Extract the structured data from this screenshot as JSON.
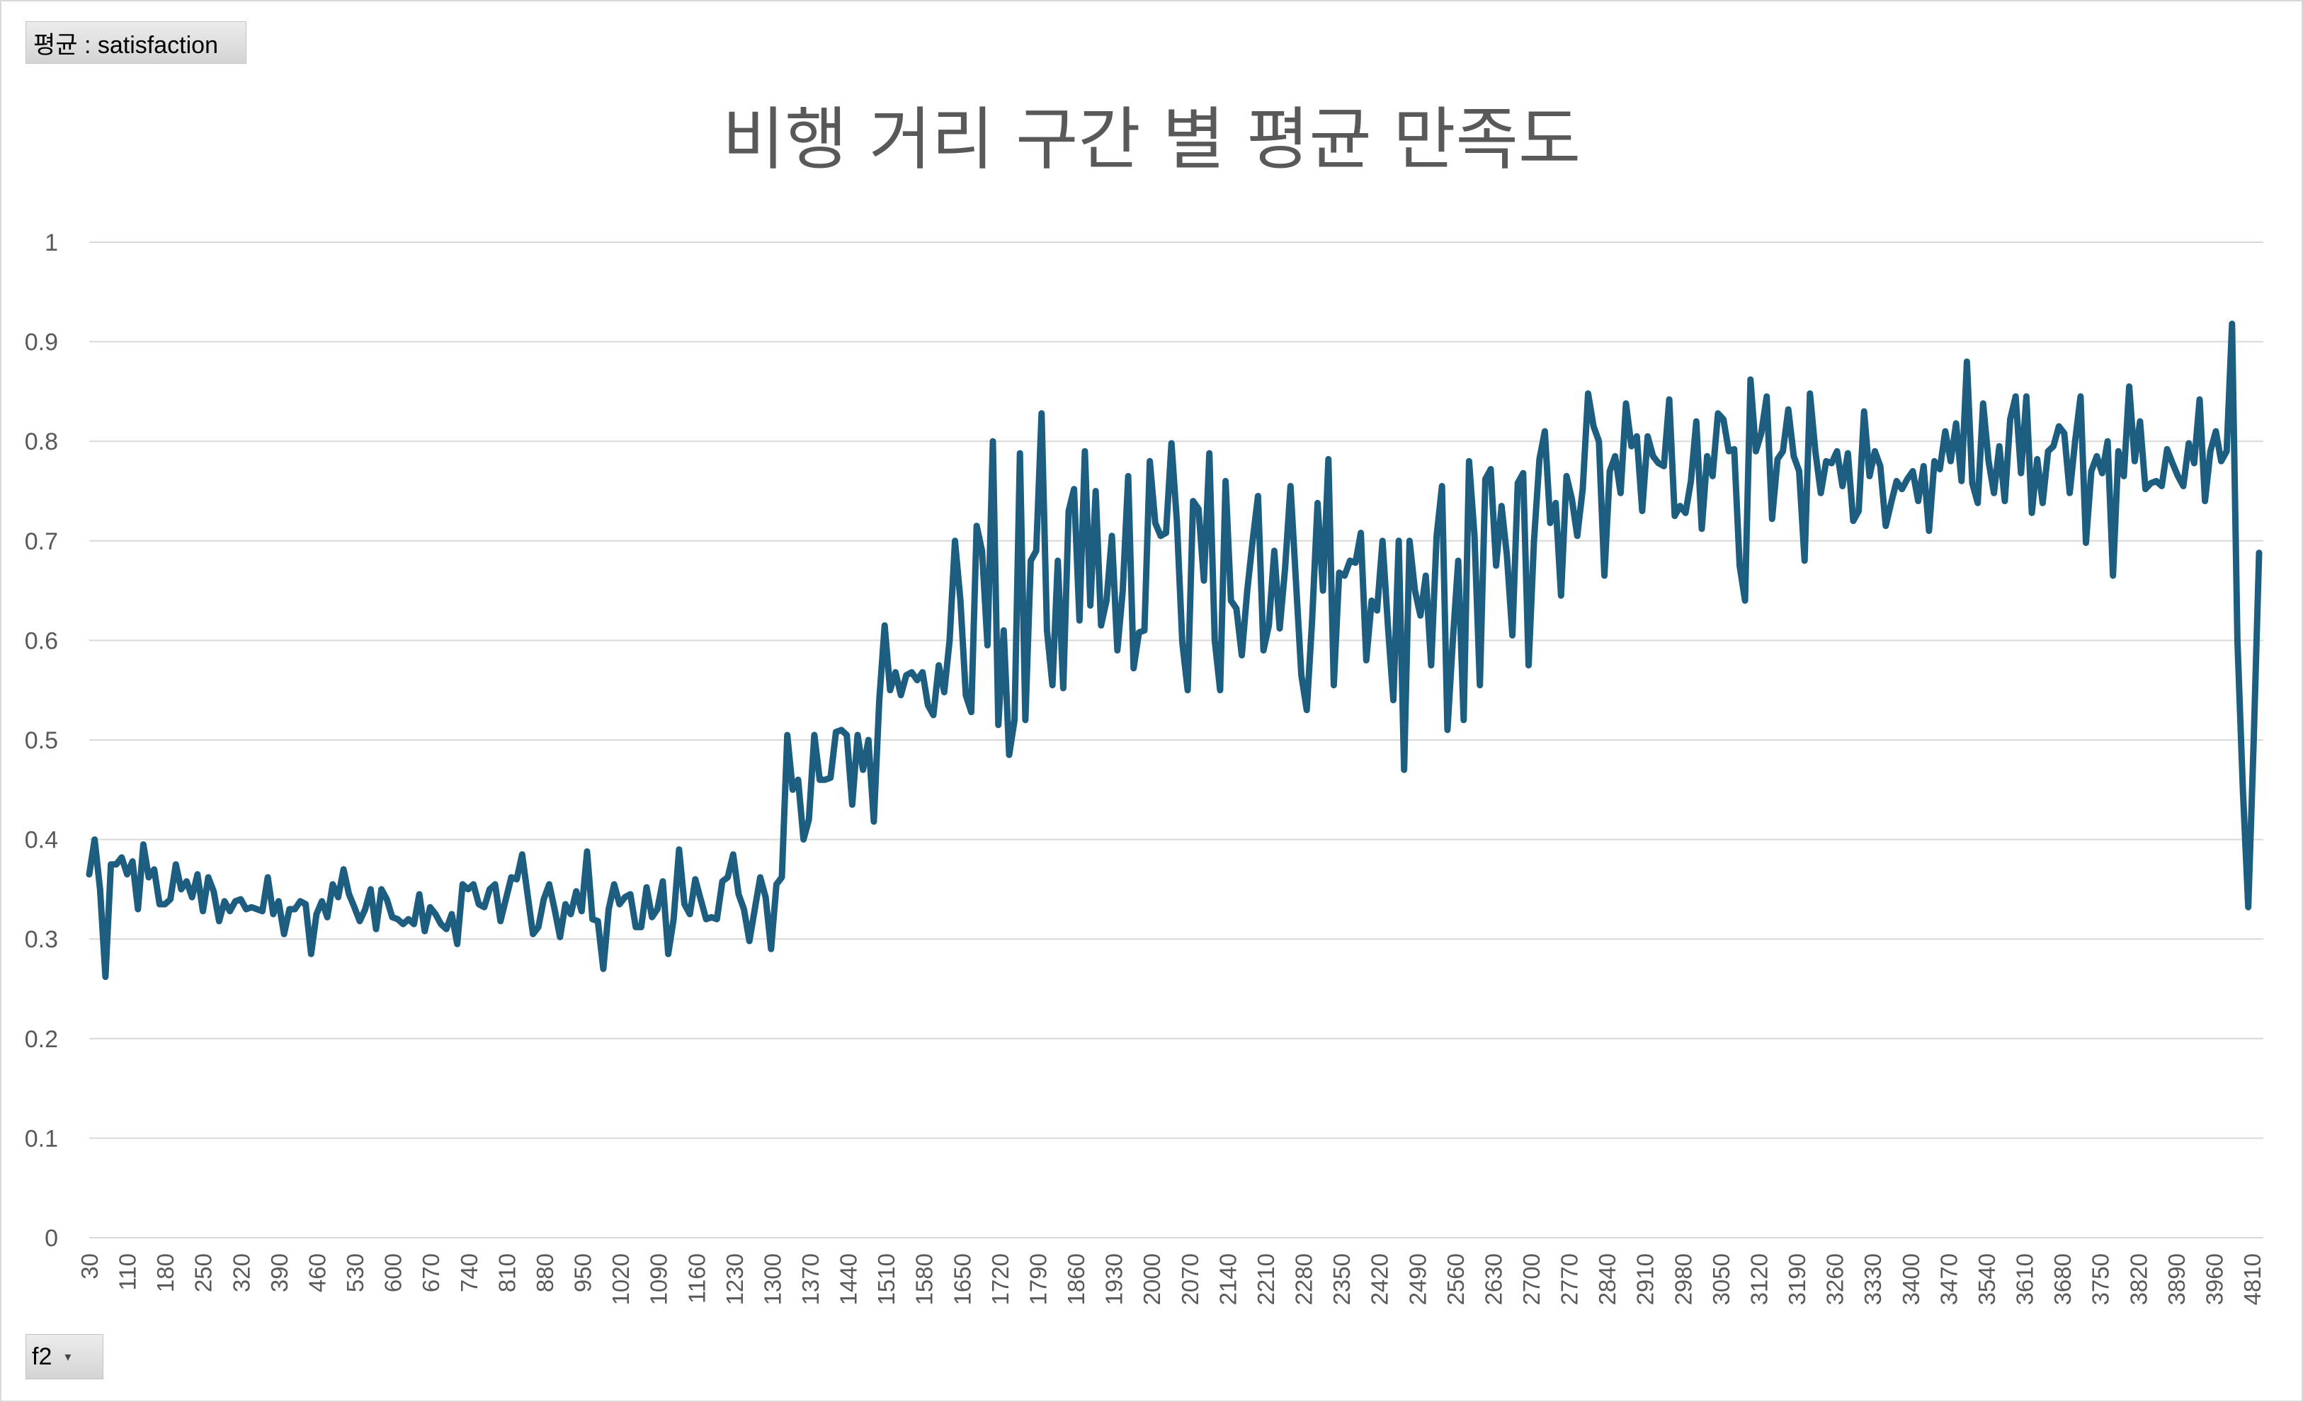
{
  "pivot": {
    "value_field_label": "평균 : satisfaction",
    "axis_field_label": "f2"
  },
  "chart_data": {
    "type": "line",
    "title": "비행 거리 구간 별 평균 만족도",
    "xlabel": "",
    "ylabel": "",
    "ylim": [
      0,
      1
    ],
    "y_ticks": [
      "0",
      "0.1",
      "0.2",
      "0.3",
      "0.4",
      "0.5",
      "0.6",
      "0.7",
      "0.8",
      "0.9",
      "1"
    ],
    "gridlines": true,
    "legend": "none",
    "line_color": "#1d5e80",
    "x_tick_labels": [
      "30",
      "110",
      "180",
      "250",
      "320",
      "390",
      "460",
      "530",
      "600",
      "670",
      "740",
      "810",
      "880",
      "950",
      "1020",
      "1090",
      "1160",
      "1230",
      "1300",
      "1370",
      "1440",
      "1510",
      "1580",
      "1650",
      "1720",
      "1790",
      "1860",
      "1930",
      "2000",
      "2070",
      "2140",
      "2210",
      "2280",
      "2350",
      "2420",
      "2490",
      "2560",
      "2630",
      "2700",
      "2770",
      "2840",
      "2910",
      "2980",
      "3050",
      "3120",
      "3190",
      "3260",
      "3330",
      "3400",
      "3470",
      "3540",
      "3610",
      "3680",
      "3750",
      "3820",
      "3890",
      "3960",
      "4810"
    ],
    "values": [
      0.365,
      0.4,
      0.35,
      0.262,
      0.375,
      0.375,
      0.382,
      0.365,
      0.378,
      0.33,
      0.395,
      0.362,
      0.37,
      0.335,
      0.335,
      0.34,
      0.375,
      0.35,
      0.358,
      0.342,
      0.365,
      0.328,
      0.362,
      0.348,
      0.318,
      0.338,
      0.328,
      0.338,
      0.34,
      0.33,
      0.332,
      0.33,
      0.328,
      0.362,
      0.325,
      0.338,
      0.305,
      0.33,
      0.33,
      0.338,
      0.335,
      0.285,
      0.325,
      0.338,
      0.322,
      0.355,
      0.342,
      0.37,
      0.345,
      0.332,
      0.318,
      0.33,
      0.35,
      0.31,
      0.35,
      0.34,
      0.322,
      0.32,
      0.315,
      0.32,
      0.315,
      0.345,
      0.308,
      0.332,
      0.325,
      0.315,
      0.31,
      0.325,
      0.295,
      0.355,
      0.35,
      0.355,
      0.335,
      0.332,
      0.35,
      0.355,
      0.318,
      0.34,
      0.362,
      0.36,
      0.385,
      0.345,
      0.305,
      0.312,
      0.34,
      0.355,
      0.33,
      0.302,
      0.335,
      0.325,
      0.348,
      0.328,
      0.388,
      0.32,
      0.318,
      0.27,
      0.33,
      0.355,
      0.335,
      0.342,
      0.345,
      0.312,
      0.312,
      0.352,
      0.322,
      0.33,
      0.358,
      0.285,
      0.32,
      0.39,
      0.335,
      0.325,
      0.36,
      0.34,
      0.32,
      0.322,
      0.32,
      0.358,
      0.362,
      0.385,
      0.345,
      0.33,
      0.298,
      0.33,
      0.362,
      0.342,
      0.29,
      0.355,
      0.362,
      0.505,
      0.45,
      0.46,
      0.4,
      0.42,
      0.505,
      0.46,
      0.46,
      0.462,
      0.508,
      0.51,
      0.505,
      0.435,
      0.505,
      0.47,
      0.5,
      0.418,
      0.54,
      0.615,
      0.55,
      0.568,
      0.545,
      0.565,
      0.568,
      0.56,
      0.568,
      0.535,
      0.525,
      0.575,
      0.548,
      0.6,
      0.7,
      0.64,
      0.545,
      0.528,
      0.715,
      0.69,
      0.595,
      0.8,
      0.515,
      0.61,
      0.485,
      0.52,
      0.788,
      0.52,
      0.68,
      0.69,
      0.828,
      0.61,
      0.555,
      0.68,
      0.552,
      0.73,
      0.752,
      0.62,
      0.79,
      0.635,
      0.75,
      0.615,
      0.64,
      0.705,
      0.59,
      0.65,
      0.765,
      0.572,
      0.608,
      0.61,
      0.78,
      0.718,
      0.705,
      0.708,
      0.798,
      0.72,
      0.598,
      0.55,
      0.74,
      0.732,
      0.66,
      0.788,
      0.6,
      0.55,
      0.76,
      0.64,
      0.632,
      0.585,
      0.65,
      0.7,
      0.745,
      0.59,
      0.615,
      0.69,
      0.612,
      0.672,
      0.755,
      0.66,
      0.565,
      0.53,
      0.62,
      0.738,
      0.65,
      0.782,
      0.555,
      0.668,
      0.665,
      0.68,
      0.678,
      0.708,
      0.58,
      0.64,
      0.63,
      0.7,
      0.615,
      0.54,
      0.7,
      0.47,
      0.7,
      0.65,
      0.625,
      0.665,
      0.575,
      0.705,
      0.755,
      0.51,
      0.6,
      0.68,
      0.52,
      0.78,
      0.705,
      0.555,
      0.762,
      0.772,
      0.675,
      0.735,
      0.685,
      0.605,
      0.758,
      0.768,
      0.575,
      0.7,
      0.782,
      0.81,
      0.718,
      0.738,
      0.645,
      0.765,
      0.742,
      0.705,
      0.752,
      0.848,
      0.815,
      0.8,
      0.665,
      0.77,
      0.785,
      0.748,
      0.838,
      0.795,
      0.805,
      0.73,
      0.805,
      0.785,
      0.778,
      0.775,
      0.842,
      0.725,
      0.735,
      0.728,
      0.76,
      0.82,
      0.712,
      0.785,
      0.765,
      0.828,
      0.822,
      0.79,
      0.792,
      0.675,
      0.64,
      0.862,
      0.79,
      0.808,
      0.845,
      0.722,
      0.782,
      0.79,
      0.832,
      0.785,
      0.77,
      0.68,
      0.848,
      0.79,
      0.748,
      0.78,
      0.778,
      0.79,
      0.755,
      0.788,
      0.72,
      0.73,
      0.83,
      0.765,
      0.79,
      0.775,
      0.715,
      0.738,
      0.76,
      0.752,
      0.762,
      0.77,
      0.74,
      0.775,
      0.71,
      0.78,
      0.772,
      0.81,
      0.78,
      0.818,
      0.76,
      0.88,
      0.758,
      0.738,
      0.838,
      0.78,
      0.748,
      0.795,
      0.74,
      0.822,
      0.845,
      0.768,
      0.845,
      0.728,
      0.782,
      0.738,
      0.79,
      0.795,
      0.815,
      0.808,
      0.748,
      0.8,
      0.845,
      0.698,
      0.77,
      0.785,
      0.768,
      0.8,
      0.665,
      0.79,
      0.765,
      0.855,
      0.78,
      0.82,
      0.752,
      0.758,
      0.76,
      0.755,
      0.792,
      0.778,
      0.765,
      0.755,
      0.798,
      0.778,
      0.842,
      0.74,
      0.79,
      0.81,
      0.78,
      0.79,
      0.918,
      0.6,
      0.45,
      0.332,
      0.5,
      0.688
    ]
  }
}
